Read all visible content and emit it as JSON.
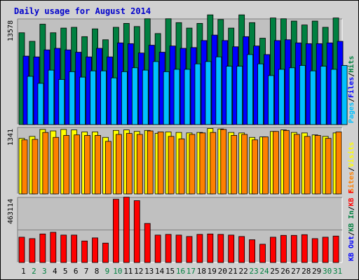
{
  "title": "Daily usage for August 2014",
  "colors": {
    "background": "#c0c0c0",
    "frame": "#d0d0d0",
    "title": "#0000cc",
    "hits": "#008040",
    "files": "#0000ff",
    "pages": "#00c0ff",
    "visits": "#ffff00",
    "sites": "#ff8000",
    "kb_in": "#008040",
    "kb_out": "#0000ff",
    "kb": "#ff0000",
    "weekday_label": "#000000",
    "weekend_label": "#008040",
    "grid": "#808080"
  },
  "chart_data": [
    {
      "type": "bar",
      "title": "Daily usage for August 2014",
      "ymax_label": "13578",
      "ylim": [
        0,
        13578
      ],
      "categories": [
        "1",
        "2",
        "3",
        "4",
        "5",
        "6",
        "7",
        "8",
        "9",
        "10",
        "11",
        "12",
        "13",
        "14",
        "15",
        "16",
        "17",
        "18",
        "19",
        "20",
        "21",
        "22",
        "23",
        "24",
        "25",
        "26",
        "27",
        "28",
        "29",
        "30",
        "31"
      ],
      "weekend_days": [
        "2",
        "3",
        "9",
        "10",
        "16",
        "17",
        "23",
        "24",
        "30",
        "31"
      ],
      "legend": [
        {
          "label": "Hits",
          "color": "#008040"
        },
        {
          "label": "Files",
          "color": "#0000ff"
        },
        {
          "label": "Pages",
          "color": "#00c0ff"
        }
      ],
      "legend_separator": "/",
      "series": [
        {
          "name": "Hits",
          "values": [
            11800,
            10700,
            12900,
            11800,
            12400,
            12500,
            11300,
            12300,
            10900,
            12500,
            13000,
            12600,
            13600,
            11700,
            13600,
            13100,
            12400,
            13000,
            14100,
            13500,
            12400,
            14100,
            13100,
            11100,
            13700,
            13600,
            13300,
            12800,
            13300,
            12500,
            13700
          ]
        },
        {
          "name": "Files",
          "values": [
            8800,
            8700,
            9600,
            9800,
            9600,
            9300,
            8700,
            9800,
            8700,
            10500,
            10400,
            9200,
            10200,
            9300,
            10100,
            9800,
            9900,
            10800,
            11500,
            10800,
            10000,
            11300,
            10100,
            9000,
            10800,
            10900,
            10500,
            10400,
            10400,
            10500,
            10700
          ]
        },
        {
          "name": "Pages",
          "values": [
            6200,
            5300,
            7000,
            5800,
            6800,
            6100,
            6900,
            6900,
            6000,
            6800,
            7300,
            7000,
            8100,
            6800,
            7100,
            7100,
            7800,
            8100,
            8700,
            7500,
            7500,
            9000,
            7800,
            6300,
            7100,
            7300,
            7600,
            6900,
            7500,
            7100,
            7600
          ]
        }
      ]
    },
    {
      "type": "bar",
      "ymax_label": "1341",
      "ylim": [
        0,
        1341
      ],
      "categories": [
        "1",
        "2",
        "3",
        "4",
        "5",
        "6",
        "7",
        "8",
        "9",
        "10",
        "11",
        "12",
        "13",
        "14",
        "15",
        "16",
        "17",
        "18",
        "19",
        "20",
        "21",
        "22",
        "23",
        "24",
        "25",
        "26",
        "27",
        "28",
        "29",
        "30",
        "31"
      ],
      "legend": [
        {
          "label": "Visits",
          "color": "#ffff00"
        },
        {
          "label": "Sites",
          "color": "#ff8000"
        }
      ],
      "legend_separator": "/",
      "series": [
        {
          "name": "Visits",
          "values": [
            1120,
            1160,
            1300,
            1270,
            1300,
            1290,
            1250,
            1250,
            1140,
            1280,
            1290,
            1260,
            1280,
            1220,
            1250,
            1240,
            1230,
            1240,
            1320,
            1310,
            1240,
            1230,
            1140,
            1150,
            1260,
            1290,
            1240,
            1230,
            1190,
            1160,
            1230
          ]
        },
        {
          "name": "Sites",
          "values": [
            1090,
            1100,
            1240,
            1140,
            1180,
            1190,
            1180,
            1180,
            1060,
            1200,
            1220,
            1200,
            1270,
            1250,
            1160,
            1110,
            1200,
            1230,
            1240,
            1300,
            1180,
            1200,
            1090,
            1150,
            1260,
            1280,
            1200,
            1160,
            1180,
            1120,
            1250
          ]
        }
      ]
    },
    {
      "type": "bar",
      "ymax_label": "463114",
      "ylim": [
        0,
        463114
      ],
      "categories": [
        "1",
        "2",
        "3",
        "4",
        "5",
        "6",
        "7",
        "8",
        "9",
        "10",
        "11",
        "12",
        "13",
        "14",
        "15",
        "16",
        "17",
        "18",
        "19",
        "20",
        "21",
        "22",
        "23",
        "24",
        "25",
        "26",
        "27",
        "28",
        "29",
        "30",
        "31"
      ],
      "legend": [
        {
          "label": "KB F",
          "color": "#ff0000"
        },
        {
          "label": "KB In",
          "color": "#008040"
        },
        {
          "label": "KB Out",
          "color": "#0000ff"
        }
      ],
      "legend_separator": "/",
      "grid_lines": [
        0.5
      ],
      "series": [
        {
          "name": "KB F",
          "values": [
            180000,
            170000,
            203000,
            215000,
            195000,
            195000,
            153000,
            175000,
            138000,
            450000,
            465000,
            440000,
            278000,
            195000,
            200000,
            195000,
            185000,
            200000,
            203000,
            200000,
            195000,
            185000,
            162000,
            130000,
            180000,
            193000,
            193000,
            198000,
            170000,
            180000,
            188000
          ]
        }
      ]
    }
  ]
}
